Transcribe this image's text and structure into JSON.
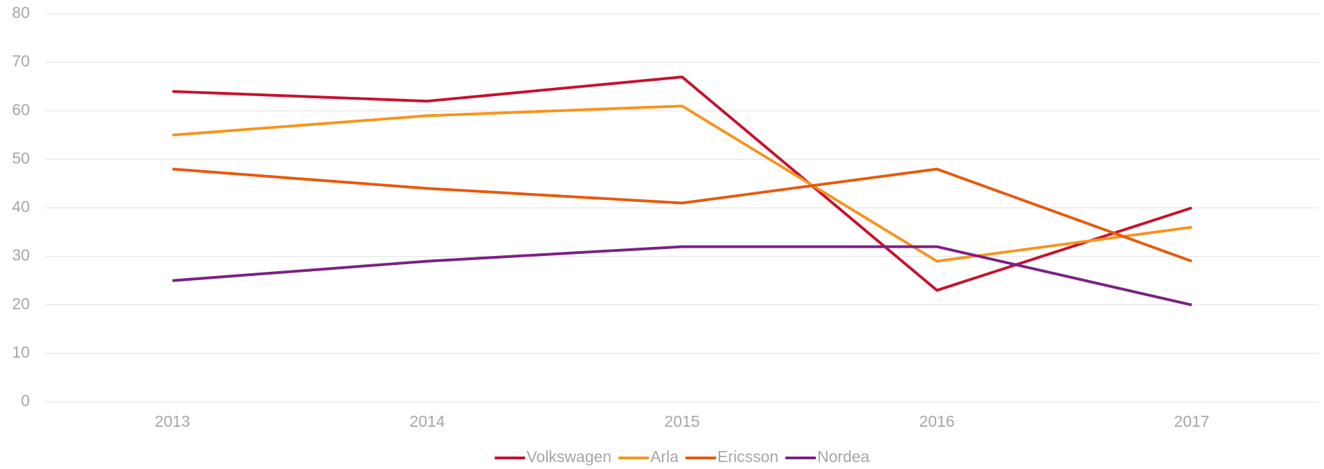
{
  "chart_data": {
    "type": "line",
    "categories": [
      "2013",
      "2014",
      "2015",
      "2016",
      "2017"
    ],
    "series": [
      {
        "name": "Volkswagen",
        "color": "#c8102e",
        "values": [
          64,
          62,
          67,
          23,
          40
        ]
      },
      {
        "name": "Arla",
        "color": "#f7941d",
        "values": [
          55,
          59,
          61,
          29,
          36
        ]
      },
      {
        "name": "Ericsson",
        "color": "#e8590c",
        "values": [
          48,
          44,
          41,
          48,
          29
        ]
      },
      {
        "name": "Nordea",
        "color": "#7b2182",
        "values": [
          25,
          29,
          32,
          32,
          20
        ]
      }
    ],
    "ylim": [
      0,
      80
    ],
    "yticks": [
      0,
      10,
      20,
      30,
      40,
      50,
      60,
      70,
      80
    ],
    "grid": true,
    "legend": "bottom"
  }
}
